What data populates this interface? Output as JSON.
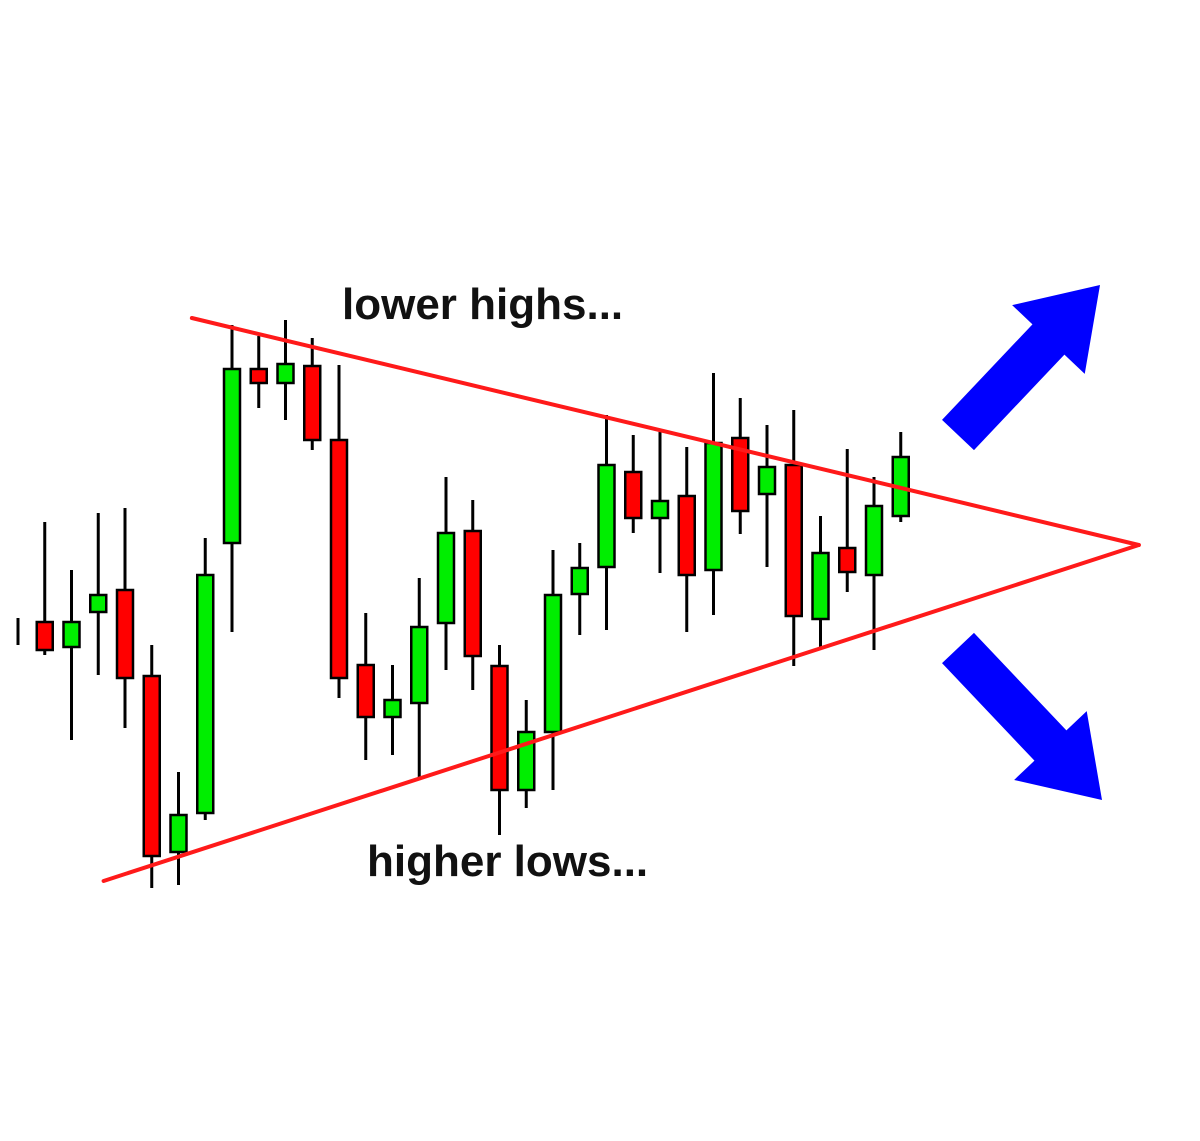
{
  "chart_data": {
    "type": "candlestick",
    "title": "",
    "xlabel": "",
    "ylabel": "",
    "grid": false,
    "ohlc_order": [
      "open",
      "high",
      "low",
      "close"
    ],
    "candles": [
      [
        36.8,
        38.2,
        35.5,
        36.8
      ],
      [
        37.8,
        47.8,
        34.5,
        35.0
      ],
      [
        35.3,
        43.0,
        26.0,
        37.8
      ],
      [
        38.8,
        48.7,
        32.5,
        40.5
      ],
      [
        41.0,
        49.2,
        27.2,
        32.2
      ],
      [
        32.4,
        35.5,
        11.2,
        14.4
      ],
      [
        14.8,
        22.8,
        11.5,
        18.5
      ],
      [
        18.7,
        46.2,
        18.0,
        42.5
      ],
      [
        45.7,
        67.5,
        36.8,
        63.1
      ],
      [
        63.1,
        66.4,
        59.2,
        61.7
      ],
      [
        61.7,
        68.0,
        58.0,
        63.6
      ],
      [
        63.4,
        66.2,
        55.0,
        56.0
      ],
      [
        56.0,
        63.5,
        30.2,
        32.2
      ],
      [
        33.5,
        38.7,
        24.0,
        28.3
      ],
      [
        28.3,
        33.5,
        24.5,
        30.0
      ],
      [
        29.7,
        42.2,
        22.0,
        37.3
      ],
      [
        37.7,
        52.3,
        33.0,
        46.7
      ],
      [
        46.9,
        50.0,
        31.0,
        34.4
      ],
      [
        33.4,
        35.5,
        16.5,
        21.0
      ],
      [
        21.0,
        30.0,
        19.2,
        26.8
      ],
      [
        26.8,
        45.0,
        21.0,
        40.5
      ],
      [
        40.6,
        45.7,
        36.5,
        43.2
      ],
      [
        43.3,
        58.5,
        37.0,
        53.5
      ],
      [
        52.8,
        56.5,
        46.7,
        48.2
      ],
      [
        48.2,
        56.8,
        42.7,
        49.9
      ],
      [
        50.4,
        55.3,
        36.8,
        42.5
      ],
      [
        43.0,
        62.7,
        38.5,
        55.7
      ],
      [
        56.2,
        60.2,
        46.6,
        48.9
      ],
      [
        50.6,
        57.5,
        43.3,
        53.3
      ],
      [
        53.5,
        59.0,
        33.4,
        38.4
      ],
      [
        38.1,
        48.4,
        35.2,
        44.7
      ],
      [
        45.2,
        55.1,
        40.8,
        42.8
      ],
      [
        42.5,
        52.3,
        35.0,
        49.4
      ],
      [
        48.4,
        56.8,
        47.8,
        54.3
      ]
    ],
    "trendlines": [
      {
        "id": "upper",
        "from": [
          6.5,
          68.2
        ],
        "to": [
          41.9,
          45.5
        ]
      },
      {
        "id": "lower",
        "from": [
          3.2,
          11.9
        ],
        "to": [
          41.9,
          45.5
        ]
      }
    ],
    "annotations": {
      "upper": "lower highs...",
      "lower": "higher lows..."
    },
    "arrows": [
      {
        "direction": "up-right",
        "meaning": "breakout up"
      },
      {
        "direction": "down-right",
        "meaning": "breakout down"
      }
    ],
    "colors": {
      "bullish": "#00ee00",
      "bearish": "#ff0000",
      "trendline": "#ff1a1a",
      "arrow": "#0000ff",
      "outline": "#000000"
    }
  }
}
